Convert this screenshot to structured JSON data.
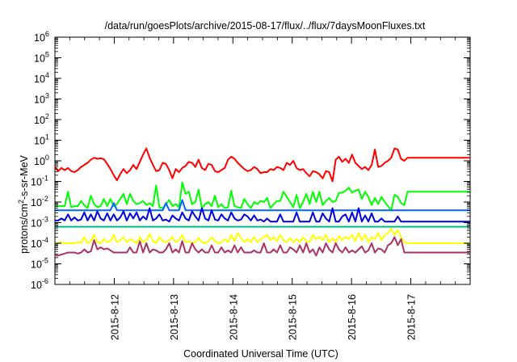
{
  "chart_data": {
    "type": "line",
    "title": "/data/run/goesPlots/archive/2015-08-17/flux/../flux/7daysMoonFluxes.txt",
    "xlabel": "Coordinated Universal Time (UTC)",
    "ylabel": {
      "pre": "protons/cm",
      "sup": "2",
      "post": "-s-sr-MeV"
    },
    "x_ticks": [
      "2015-8-12",
      "2015-8-13",
      "2015-8-14",
      "2015-8-15",
      "2015-8-16",
      "2015-8-17"
    ],
    "x_range_days": [
      0,
      7.0
    ],
    "y_scale": "log",
    "y_tick_exponents": [
      -6,
      -5,
      -4,
      -3,
      -2,
      -1,
      0,
      1,
      2,
      3,
      4,
      5,
      6
    ],
    "y_tick_base": "10",
    "grid": false,
    "legend": "none",
    "series": [
      {
        "color": "#ff0000",
        "values_log10": [
          -0.3,
          -0.5,
          -0.35,
          -0.45,
          -0.35,
          -0.5,
          -0.55,
          -0.45,
          -0.3,
          -0.2,
          -0.1,
          0.05,
          0.15,
          0.1,
          0.12,
          0.08,
          -0.15,
          -0.4,
          -0.7,
          -0.95,
          -0.65,
          -0.4,
          -0.6,
          -0.45,
          -0.2,
          -0.4,
          -0.05,
          0.3,
          0.6,
          0.15,
          -0.2,
          -0.5,
          -0.45,
          -0.1,
          -0.15,
          -0.45,
          -0.85,
          -0.4,
          -0.55,
          -0.35,
          -0.25,
          -0.05,
          -0.1,
          -0.3,
          0.05,
          -0.35,
          -0.45,
          -0.15,
          -0.2,
          -0.5,
          -0.55,
          -0.45,
          -0.35,
          0.05,
          0.2,
          0.1,
          -0.1,
          -0.25,
          -0.4,
          -0.5,
          -0.45,
          -0.3,
          -0.4,
          -0.6,
          -0.55,
          -0.55,
          -0.4,
          -0.45,
          -0.3,
          -0.35,
          -0.45,
          -0.1,
          -0.2,
          0.0,
          -0.35,
          -0.45,
          -0.4,
          -0.6,
          -0.75,
          -0.5,
          -0.55,
          -0.65,
          -0.85,
          -0.5,
          -0.55,
          -1.0,
          0.05,
          0.2,
          -0.05,
          0.1,
          -0.1,
          0.3,
          -0.1,
          -0.25,
          -0.4,
          -0.3,
          -0.45,
          -0.2,
          0.55,
          -0.3,
          -0.25,
          -0.1,
          0.0,
          0.15,
          0.6,
          0.55,
          0.1,
          0.0,
          0.15,
          0.15
        ],
        "flat_after": 0.15
      },
      {
        "color": "#00ff00",
        "values_log10": [
          -2.2,
          -2.2,
          -2.2,
          -2.2,
          -1.5,
          -2.25,
          -2.2,
          -2.2,
          -1.95,
          -2.15,
          -2.3,
          -1.7,
          -2.1,
          -2.25,
          -2.2,
          -1.85,
          -2.2,
          -1.85,
          -2.2,
          -2.1,
          -1.85,
          -1.6,
          -2.1,
          -1.6,
          -1.95,
          -2.1,
          -2.05,
          -1.95,
          -2.15,
          -2.05,
          -2.2,
          -1.2,
          -2.25,
          -2.3,
          -2.1,
          -1.9,
          -2.2,
          -2.1,
          -2.25,
          -1.05,
          -1.6,
          -1.5,
          -2.1,
          -2.0,
          -1.4,
          -2.3,
          -2.1,
          -2.0,
          -2.2,
          -1.7,
          -2.25,
          -2.1,
          -2.3,
          -2.25,
          -1.45,
          -2.2,
          -2.25,
          -2.3,
          -1.85,
          -2.1,
          -2.3,
          -2.0,
          -2.1,
          -1.95,
          -2.0,
          -1.8,
          -2.3,
          -2.1,
          -1.95,
          -1.95,
          -1.5,
          -1.75,
          -2.0,
          -2.25,
          -1.65,
          -2.3,
          -2.0,
          -1.6,
          -2.1,
          -1.5,
          -2.0,
          -1.5,
          -2.15,
          -1.95,
          -1.8,
          -2.0,
          -1.95,
          -1.55,
          -1.55,
          -1.45,
          -1.3,
          -1.55,
          -1.45,
          -1.4,
          -1.85,
          -1.5,
          -1.75,
          -2.15,
          -1.8,
          -2.1,
          -1.75,
          -2.0,
          -2.2,
          -2.4,
          -1.65,
          -1.75,
          -2.05,
          -2.15,
          -1.5,
          -1.5
        ],
        "flat_after": -1.5
      },
      {
        "color": "#0066ff",
        "values_log10": [
          -2.4,
          -2.4,
          -2.4,
          -2.4,
          -2.4,
          -2.4,
          -2.4,
          -2.4,
          -2.4,
          -2.4,
          -2.4,
          -2.4,
          -2.4,
          -2.4,
          -2.4,
          -2.4,
          -2.4,
          -2.4,
          -2.05,
          -2.4,
          -2.4,
          -2.4,
          -2.4,
          -2.4,
          -2.4,
          -2.4,
          -2.4,
          -2.4,
          -2.4,
          -2.4,
          -2.4,
          -2.4,
          -2.4,
          -2.4,
          -2.05,
          -2.4,
          -2.4,
          -2.4,
          -2.4,
          -1.9,
          -2.4,
          -2.4,
          -2.4,
          -2.4,
          -2.4,
          -2.4,
          -2.4,
          -2.4,
          -2.4,
          -2.4,
          -2.4,
          -2.4,
          -2.4,
          -2.4,
          -2.4,
          -2.4,
          -2.4,
          -2.4,
          -2.4,
          -2.4,
          -2.4,
          -2.4,
          -2.4,
          -2.4,
          -2.4,
          -2.4,
          -2.4,
          -2.4,
          -2.4,
          -2.4,
          -2.4,
          -2.4,
          -2.4,
          -2.4,
          -2.4,
          -2.4,
          -2.4,
          -2.4,
          -2.4,
          -2.4,
          -2.4,
          -2.4,
          -2.4,
          -2.4,
          -2.4,
          -2.4,
          -2.4,
          -2.4,
          -2.4,
          -2.4,
          -2.4,
          -2.4,
          -2.4,
          -2.4,
          -2.4,
          -2.4,
          -2.4,
          -2.4,
          -2.4,
          -2.4,
          -2.4,
          -2.4,
          -2.4,
          -2.4,
          -2.4,
          -2.4,
          -2.4,
          -2.4,
          -2.4,
          -2.4
        ],
        "flat_after": -2.4
      },
      {
        "color": "#0000dd",
        "values_log10": [
          -2.9,
          -2.9,
          -2.8,
          -2.9,
          -2.6,
          -2.9,
          -2.75,
          -2.9,
          -2.85,
          -2.5,
          -2.9,
          -2.6,
          -2.9,
          -2.45,
          -2.8,
          -2.9,
          -2.55,
          -2.9,
          -2.6,
          -2.9,
          -2.75,
          -2.45,
          -2.9,
          -2.55,
          -2.8,
          -2.5,
          -2.9,
          -2.7,
          -2.85,
          -2.3,
          -2.9,
          -2.8,
          -2.6,
          -2.9,
          -2.85,
          -2.95,
          -2.65,
          -2.8,
          -2.9,
          -2.5,
          -2.8,
          -2.9,
          -2.45,
          -2.7,
          -2.9,
          -2.3,
          -2.8,
          -2.9,
          -2.4,
          -2.85,
          -2.9,
          -2.6,
          -2.8,
          -2.9,
          -2.5,
          -2.8,
          -2.9,
          -2.85,
          -2.6,
          -2.7,
          -2.9,
          -2.65,
          -2.9,
          -2.85,
          -2.95,
          -2.8,
          -2.95,
          -2.95,
          -2.95,
          -2.6,
          -2.95,
          -2.95,
          -2.95,
          -2.95,
          -2.5,
          -2.95,
          -2.95,
          -2.95,
          -2.95,
          -2.5,
          -2.95,
          -2.95,
          -2.55,
          -2.8,
          -2.95,
          -2.3,
          -2.95,
          -2.95,
          -2.7,
          -2.6,
          -2.95,
          -2.5,
          -2.95,
          -2.3,
          -2.95,
          -2.65,
          -2.95,
          -2.55,
          -2.95,
          -2.95,
          -2.8,
          -2.95,
          -2.95,
          -2.95,
          -2.95,
          -2.7,
          -2.95,
          -2.95,
          -2.95,
          -2.95
        ],
        "flat_after": -2.95
      },
      {
        "color": "#00bb88",
        "values_log10": [
          -3.2,
          -3.2,
          -3.2,
          -3.2,
          -3.2,
          -3.2,
          -3.2,
          -3.2,
          -3.2,
          -3.2,
          -3.2,
          -3.2,
          -3.2,
          -3.2,
          -3.2,
          -3.2,
          -3.2,
          -3.2,
          -3.2,
          -3.2,
          -3.2,
          -3.2,
          -3.2,
          -3.2,
          -3.2,
          -3.2,
          -3.2,
          -3.2,
          -3.2,
          -3.2,
          -3.2,
          -3.2,
          -3.2,
          -3.2,
          -3.2,
          -3.2,
          -3.2,
          -3.2,
          -3.2,
          -3.2,
          -3.2,
          -3.2,
          -3.2,
          -3.2,
          -3.2,
          -3.2,
          -3.2,
          -3.2,
          -3.2,
          -3.2,
          -3.2,
          -3.2,
          -3.2,
          -3.2,
          -3.2,
          -3.2,
          -3.2,
          -3.2,
          -3.2,
          -3.2,
          -3.2,
          -3.2,
          -3.2,
          -3.2,
          -3.2,
          -3.2,
          -3.2,
          -3.2,
          -3.2,
          -3.2,
          -3.2,
          -3.2,
          -3.2,
          -3.2,
          -3.2,
          -3.2,
          -3.2,
          -3.2,
          -3.2,
          -3.2,
          -3.2,
          -3.2,
          -3.2,
          -3.2,
          -3.2,
          -3.2,
          -3.2,
          -3.2,
          -3.2,
          -3.2,
          -3.2,
          -3.2,
          -3.2,
          -3.2,
          -3.2,
          -3.2,
          -3.2,
          -3.2,
          -3.2,
          -3.2,
          -3.2,
          -3.2,
          -3.2,
          -3.2,
          -3.2,
          -3.2,
          -3.2,
          -3.2,
          -3.2,
          -3.2
        ],
        "flat_after": -3.2
      },
      {
        "color": "#ffff00",
        "values_log10": [
          -4.0,
          -4.0,
          -3.95,
          -4.0,
          -4.0,
          -4.0,
          -4.0,
          -3.95,
          -4.0,
          -3.7,
          -4.0,
          -3.9,
          -3.6,
          -3.95,
          -4.0,
          -3.8,
          -3.95,
          -3.9,
          -3.6,
          -3.95,
          -3.85,
          -3.7,
          -3.95,
          -3.8,
          -3.9,
          -4.0,
          -3.7,
          -3.95,
          -3.85,
          -3.55,
          -3.9,
          -4.0,
          -3.7,
          -3.9,
          -3.95,
          -3.85,
          -3.7,
          -3.95,
          -3.85,
          -3.6,
          -3.95,
          -3.9,
          -4.0,
          -3.95,
          -3.75,
          -3.95,
          -4.0,
          -3.9,
          -3.7,
          -3.9,
          -4.0,
          -3.95,
          -3.8,
          -3.95,
          -3.6,
          -3.9,
          -3.5,
          -3.75,
          -3.95,
          -3.8,
          -3.95,
          -3.7,
          -3.95,
          -3.8,
          -3.7,
          -3.6,
          -3.85,
          -3.7,
          -3.9,
          -3.6,
          -3.85,
          -3.95,
          -3.75,
          -3.95,
          -3.8,
          -3.95,
          -3.7,
          -3.9,
          -3.95,
          -3.6,
          -3.8,
          -3.7,
          -3.85,
          -3.6,
          -3.95,
          -3.75,
          -3.95,
          -3.65,
          -3.85,
          -3.7,
          -3.8,
          -3.6,
          -3.9,
          -3.5,
          -3.85,
          -3.6,
          -3.95,
          -3.7,
          -3.8,
          -3.5,
          -3.85,
          -3.6,
          -3.5,
          -3.3,
          -3.6,
          -3.35,
          -3.7,
          -3.95,
          -4.0,
          -4.0
        ],
        "flat_after": -4.0
      },
      {
        "color": "#aa3366",
        "values_log10": [
          -4.6,
          -4.6,
          -4.55,
          -4.5,
          -4.45,
          -4.45,
          -4.45,
          -4.5,
          -4.45,
          -4.3,
          -4.45,
          -4.4,
          -3.85,
          -4.3,
          -4.2,
          -4.3,
          -4.25,
          -4.35,
          -4.45,
          -4.45,
          -4.45,
          -4.45,
          -4.45,
          -4.2,
          -4.45,
          -4.45,
          -3.9,
          -4.45,
          -4.0,
          -4.45,
          -4.3,
          -4.35,
          -4.45,
          -4.45,
          -4.3,
          -4.0,
          -4.45,
          -4.3,
          -4.45,
          -3.9,
          -4.45,
          -4.45,
          -4.0,
          -4.3,
          -4.45,
          -4.3,
          -4.45,
          -4.45,
          -4.1,
          -4.45,
          -4.45,
          -4.2,
          -4.45,
          -4.35,
          -4.45,
          -4.1,
          -4.45,
          -4.2,
          -4.45,
          -4.45,
          -4.45,
          -4.35,
          -4.45,
          -4.45,
          -4.0,
          -4.45,
          -4.45,
          -4.3,
          -4.45,
          -4.1,
          -4.45,
          -4.45,
          -4.2,
          -4.3,
          -4.45,
          -4.1,
          -4.45,
          -4.0,
          -4.45,
          -4.3,
          -4.6,
          -4.2,
          -4.45,
          -4.0,
          -4.3,
          -4.45,
          -4.0,
          -4.3,
          -4.45,
          -4.2,
          -4.45,
          -4.35,
          -4.45,
          -4.3,
          -4.15,
          -4.45,
          -4.35,
          -4.0,
          -4.45,
          -4.25,
          -4.3,
          -4.45,
          -4.1,
          -4.0,
          -3.7,
          -4.1,
          -3.8,
          -4.45,
          -4.45,
          -4.45
        ],
        "flat_after": -4.45
      }
    ]
  }
}
